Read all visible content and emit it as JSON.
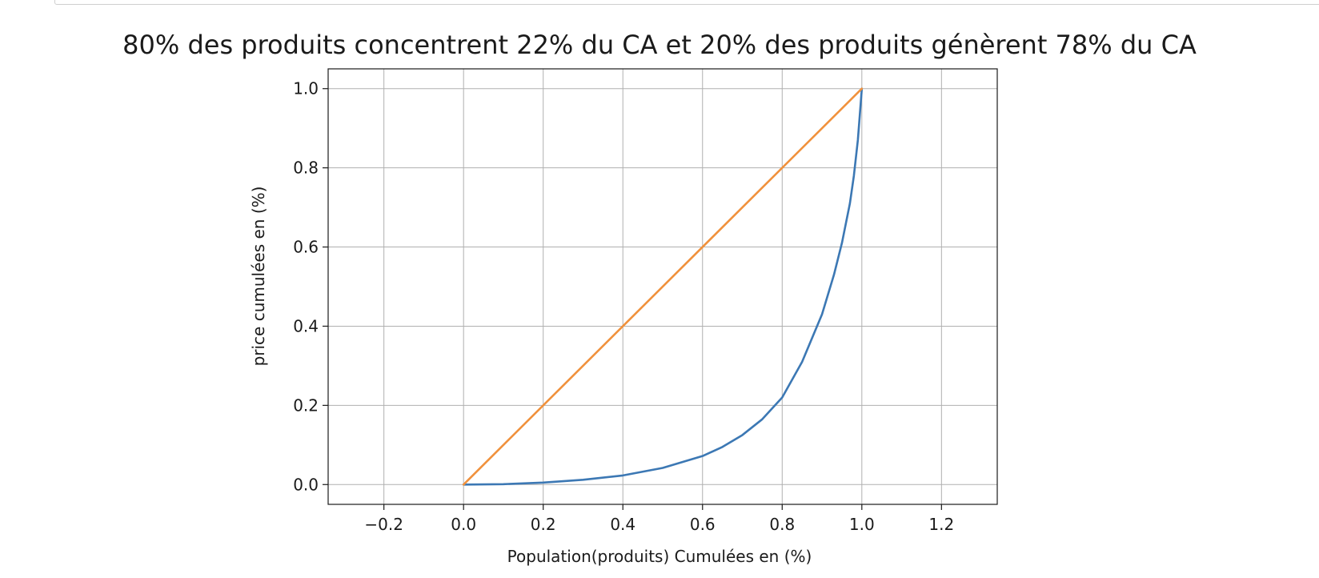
{
  "chart_data": {
    "type": "line",
    "title": "80% des produits concentrent 22% du CA et 20% des produits génèrent 78% du CA",
    "xlabel": "Population(produits) Cumulées en (%)",
    "ylabel": "price cumulées en (%)",
    "xlim": [
      -0.34,
      1.34
    ],
    "ylim": [
      -0.05,
      1.05
    ],
    "xticks": [
      -0.2,
      0.0,
      0.2,
      0.4,
      0.6,
      0.8,
      1.0,
      1.2
    ],
    "xtick_labels": [
      "−0.2",
      "0.0",
      "0.2",
      "0.4",
      "0.6",
      "0.8",
      "1.0",
      "1.2"
    ],
    "yticks": [
      0.0,
      0.2,
      0.4,
      0.6,
      0.8,
      1.0
    ],
    "ytick_labels": [
      "0.0",
      "0.2",
      "0.4",
      "0.6",
      "0.8",
      "1.0"
    ],
    "grid": true,
    "legend": "none",
    "series": [
      {
        "color": "#3c78b4",
        "x": [
          0.0,
          0.1,
          0.2,
          0.3,
          0.4,
          0.5,
          0.6,
          0.65,
          0.7,
          0.75,
          0.8,
          0.85,
          0.9,
          0.93,
          0.95,
          0.97,
          0.98,
          0.99,
          1.0
        ],
        "y": [
          0.0,
          0.001,
          0.005,
          0.012,
          0.023,
          0.042,
          0.072,
          0.095,
          0.125,
          0.165,
          0.22,
          0.31,
          0.43,
          0.53,
          0.61,
          0.71,
          0.78,
          0.87,
          1.0
        ]
      },
      {
        "color": "#f0913c",
        "x": [
          0.0,
          1.0
        ],
        "y": [
          0.0,
          1.0
        ]
      }
    ]
  }
}
